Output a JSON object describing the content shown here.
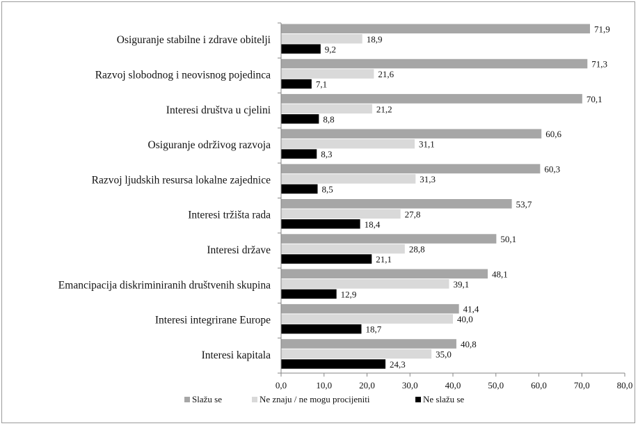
{
  "chart_data": {
    "type": "bar",
    "orientation": "horizontal",
    "title": "",
    "xlabel": "",
    "ylabel": "",
    "xlim": [
      0,
      80
    ],
    "x_ticks": [
      "0,0",
      "10,0",
      "20,0",
      "30,0",
      "40,0",
      "50,0",
      "60,0",
      "70,0",
      "80,0"
    ],
    "grid": false,
    "legend_position": "bottom",
    "categories": [
      "Osiguranje stabilne i zdrave obitelji",
      "Razvoj slobodnog i neovisnog pojedinca",
      "Interesi društva u cjelini",
      "Osiguranje održivog razvoja",
      "Razvoj ljudskih resursa lokalne zajednice",
      "Interesi tržišta rada",
      "Interesi države",
      "Emancipacija diskriminiranih društvenih skupina",
      "Interesi integrirane Europe",
      "Interesi kapitala"
    ],
    "series": [
      {
        "name": "Slažu se",
        "color": "#a6a6a6",
        "values": [
          71.9,
          71.3,
          70.1,
          60.6,
          60.3,
          53.7,
          50.1,
          48.1,
          41.4,
          40.8
        ],
        "labels": [
          "71,9",
          "71,3",
          "70,1",
          "60,6",
          "60,3",
          "53,7",
          "50,1",
          "48,1",
          "41,4",
          "40,8"
        ]
      },
      {
        "name": "Ne znaju / ne mogu procijeniti",
        "color": "#d9d9d9",
        "values": [
          18.9,
          21.6,
          21.2,
          31.1,
          31.3,
          27.8,
          28.8,
          39.1,
          40.0,
          35.0
        ],
        "labels": [
          "18,9",
          "21,6",
          "21,2",
          "31,1",
          "31,3",
          "27,8",
          "28,8",
          "39,1",
          "40,0",
          "35,0"
        ]
      },
      {
        "name": "Ne slažu se",
        "color": "#000000",
        "values": [
          9.2,
          7.1,
          8.8,
          8.3,
          8.5,
          18.4,
          21.1,
          12.9,
          18.7,
          24.3
        ],
        "labels": [
          "9,2",
          "7,1",
          "8,8",
          "8,3",
          "8,5",
          "18,4",
          "21,1",
          "12,9",
          "18,7",
          "24,3"
        ]
      }
    ]
  }
}
